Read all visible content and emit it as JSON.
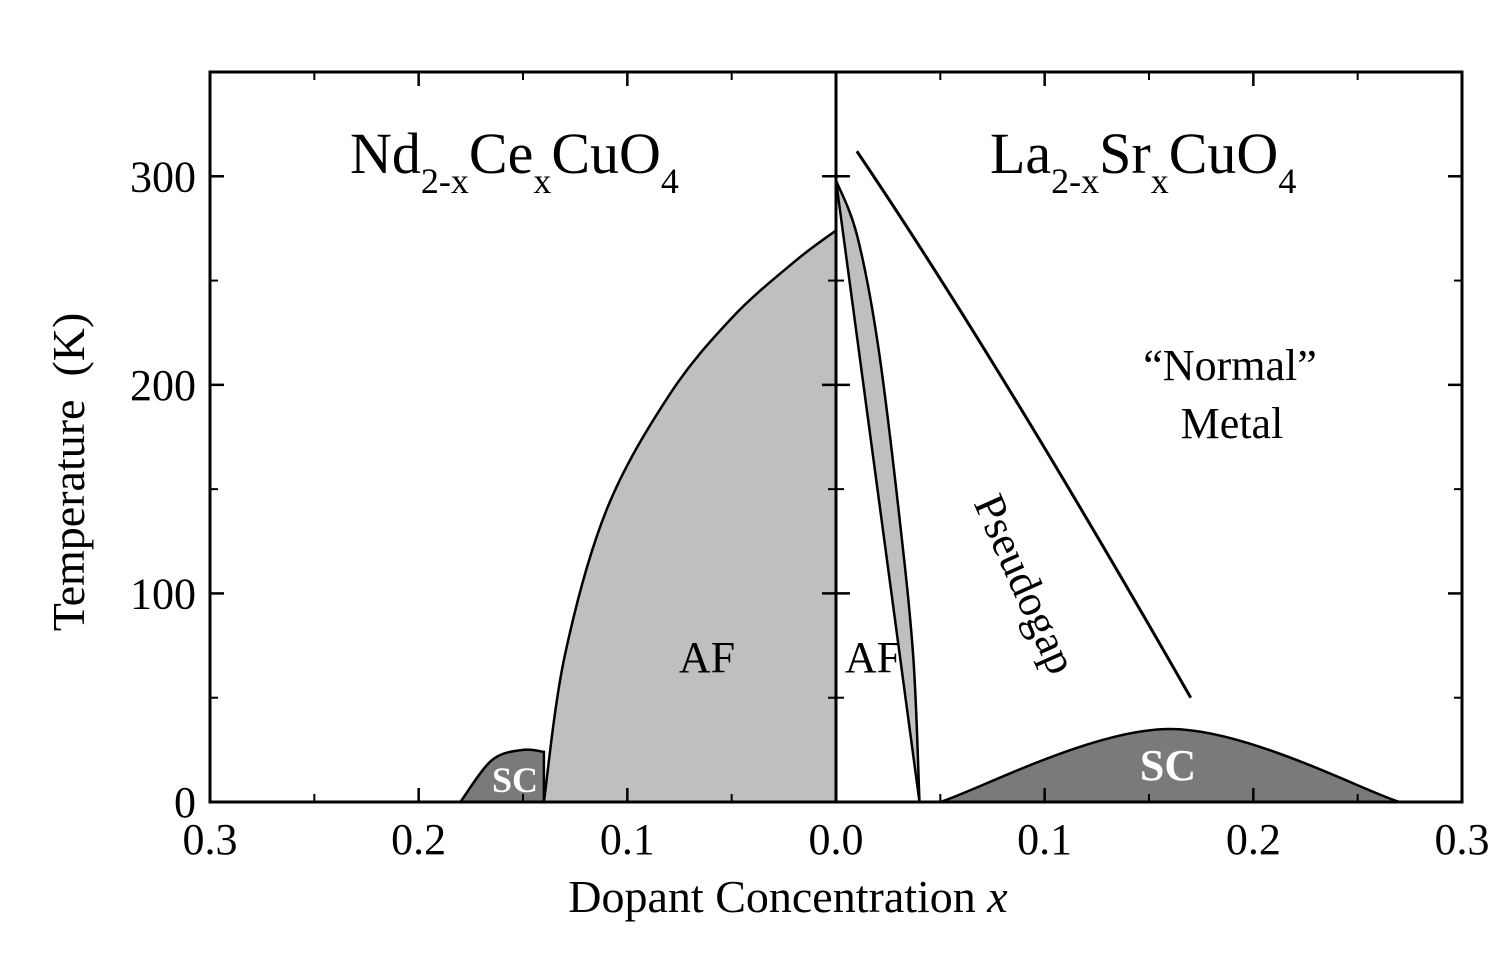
{
  "chart_data": {
    "type": "area",
    "xlabel": "Dopant Concentration",
    "xlabel_var": "x",
    "ylabel": "Temperature  (K)",
    "ylim": [
      0,
      350
    ],
    "x_ticks": [
      "0.3",
      "0.2",
      "0.1",
      "0.0",
      "0.1",
      "0.2",
      "0.3"
    ],
    "y_ticks": [
      "0",
      "100",
      "200",
      "300"
    ],
    "panels": [
      {
        "side": "left",
        "title_parts": [
          "Nd",
          "2-x",
          "Ce",
          "x",
          "CuO",
          "4"
        ],
        "xlim": [
          0.3,
          0.0
        ],
        "regions": [
          {
            "name": "AF",
            "boundary_x": [
              0.14,
              0.13,
              0.11,
              0.08,
              0.05,
              0.02,
              0.0
            ],
            "boundary_y": [
              0,
              70,
              140,
              195,
              232,
              259,
              274
            ],
            "color": "#bfbfbf"
          },
          {
            "name": "SC",
            "boundary_x": [
              0.18,
              0.165,
              0.15,
              0.14
            ],
            "boundary_y": [
              0,
              20,
              25,
              24
            ],
            "color": "#7a7a7a"
          }
        ]
      },
      {
        "side": "right",
        "title_parts": [
          "La",
          "2-x",
          "Sr",
          "x",
          "CuO",
          "4"
        ],
        "xlim": [
          0.0,
          0.3
        ],
        "regions": [
          {
            "name": "AF",
            "boundary_x": [
              0.0,
              0.01,
              0.02,
              0.03,
              0.037,
              0.04
            ],
            "boundary_y": [
              298,
              272,
              220,
              140,
              70,
              0
            ],
            "color": "#bfbfbf"
          },
          {
            "name": "SC",
            "boundary_x": [
              0.05,
              0.16,
              0.27
            ],
            "boundary_y": [
              0,
              35,
              0
            ],
            "color": "#7a7a7a"
          }
        ],
        "lines": [
          {
            "name": "Pseudogap",
            "x": [
              0.01,
              0.17
            ],
            "y": [
              312,
              50
            ]
          }
        ],
        "annotations": [
          "“Normal”",
          "Metal"
        ]
      }
    ]
  }
}
